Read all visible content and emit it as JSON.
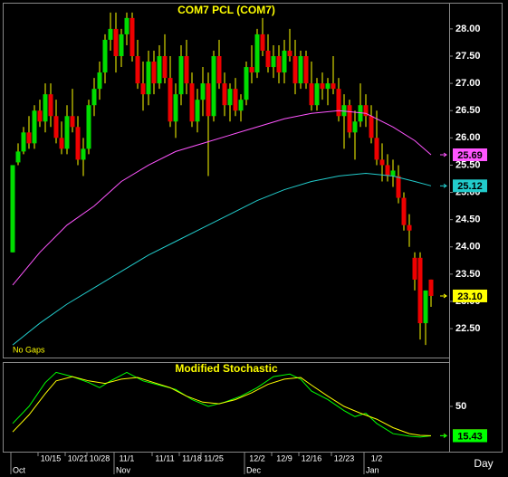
{
  "chart_data": [
    {
      "type": "candlestick",
      "title": "COM7  PCL  (COM7)",
      "note": "No Gaps",
      "categories": [
        "Oct",
        null,
        null,
        null,
        null,
        null,
        null,
        "10/15",
        null,
        null,
        null,
        null,
        "10/21",
        null,
        null,
        null,
        "10/28",
        null,
        null,
        null,
        null,
        "11/1",
        null,
        null,
        null,
        null,
        null,
        null,
        "11/11",
        null,
        null,
        null,
        null,
        "11/18",
        null,
        null,
        null,
        "11/25",
        null,
        null,
        null,
        null,
        null,
        null,
        null,
        "12/2",
        null,
        null,
        null,
        null,
        "12/9",
        null,
        null,
        null,
        null,
        "12/16",
        null,
        null,
        null,
        null,
        null,
        "12/23",
        null,
        null,
        null,
        null,
        null,
        "1/2",
        null,
        null,
        null,
        null,
        null,
        null,
        null,
        null,
        null,
        null
      ],
      "month_ticks": [
        {
          "value": 0,
          "label": "Oct"
        },
        {
          "value": 19,
          "label": "Nov"
        },
        {
          "value": 43,
          "label": "Dec"
        },
        {
          "value": 65,
          "label": "Jan"
        }
      ],
      "open": [
        23.9,
        25.55,
        25.75,
        26.1,
        25.9,
        26.5,
        26.3,
        26.8,
        26.4,
        26.0,
        25.8,
        26.4,
        26.2,
        25.6,
        25.8,
        26.6,
        26.9,
        27.2,
        27.8,
        28.0,
        27.5,
        27.9,
        28.2,
        27.5,
        27.0,
        26.8,
        27.4,
        27.0,
        27.5,
        27.1,
        26.3,
        26.8,
        27.5,
        27.0,
        26.3,
        26.7,
        27.0,
        26.4,
        27.5,
        27.0,
        26.6,
        26.9,
        26.5,
        26.7,
        27.3,
        27.2,
        27.9,
        27.6,
        27.3,
        27.5,
        27.2,
        27.6,
        27.5,
        27.0,
        27.5,
        27.0,
        26.6,
        27.0,
        26.9,
        27.0,
        26.9,
        26.4,
        26.6,
        26.1,
        26.3,
        26.6,
        26.4,
        26.0,
        25.6,
        25.5,
        25.3,
        25.3,
        24.9,
        24.4,
        23.8,
        23.8,
        22.6,
        23.4
      ],
      "high": [
        25.5,
        25.9,
        26.2,
        26.4,
        26.6,
        26.7,
        27.0,
        27.0,
        26.7,
        26.3,
        26.6,
        26.9,
        26.4,
        26.0,
        26.7,
        27.1,
        27.4,
        27.9,
        28.3,
        28.3,
        28.0,
        28.3,
        28.3,
        27.8,
        27.4,
        27.6,
        27.6,
        27.7,
        27.9,
        27.5,
        27.0,
        27.7,
        27.8,
        27.2,
        26.9,
        27.3,
        27.2,
        27.6,
        27.8,
        27.2,
        27.0,
        27.1,
        26.8,
        27.4,
        27.7,
        28.0,
        28.2,
        27.9,
        27.7,
        27.7,
        27.8,
        28.0,
        27.8,
        27.6,
        27.6,
        27.4,
        27.1,
        27.2,
        27.1,
        27.5,
        27.1,
        26.8,
        26.7,
        26.5,
        27.0,
        26.8,
        26.6,
        26.5,
        25.9,
        25.7,
        25.6,
        25.5,
        25.0,
        24.6,
        23.9,
        23.9,
        23.2,
        23.4
      ],
      "low": [
        23.9,
        25.5,
        25.7,
        25.8,
        25.8,
        26.2,
        26.1,
        26.2,
        25.9,
        25.7,
        25.7,
        26.1,
        25.5,
        25.3,
        25.7,
        26.4,
        26.7,
        27.0,
        27.6,
        27.2,
        27.3,
        27.7,
        27.4,
        26.9,
        26.5,
        26.6,
        26.8,
        26.9,
        27.0,
        26.2,
        26.0,
        26.6,
        26.8,
        26.2,
        26.1,
        26.4,
        25.3,
        26.3,
        26.9,
        26.4,
        26.3,
        26.4,
        26.3,
        26.6,
        27.0,
        27.1,
        27.5,
        27.2,
        27.1,
        27.0,
        27.0,
        27.4,
        26.8,
        26.9,
        26.9,
        26.5,
        26.5,
        26.7,
        26.6,
        26.8,
        26.3,
        25.8,
        26.0,
        25.6,
        26.2,
        26.2,
        25.9,
        25.5,
        25.2,
        25.2,
        25.1,
        24.8,
        24.3,
        24.0,
        23.2,
        22.3,
        22.2,
        22.9
      ],
      "close": [
        25.5,
        25.75,
        26.1,
        25.9,
        26.5,
        26.3,
        26.8,
        26.4,
        26.0,
        25.8,
        26.4,
        26.2,
        25.6,
        25.8,
        26.6,
        26.9,
        27.2,
        27.8,
        28.0,
        27.5,
        27.9,
        28.2,
        27.5,
        27.0,
        26.8,
        27.4,
        27.0,
        27.5,
        27.1,
        26.3,
        26.8,
        27.5,
        27.0,
        26.3,
        26.7,
        27.0,
        26.4,
        27.5,
        27.0,
        26.6,
        26.9,
        26.5,
        26.7,
        27.3,
        27.2,
        27.9,
        27.6,
        27.3,
        27.5,
        27.2,
        27.6,
        27.5,
        27.0,
        27.5,
        27.0,
        26.6,
        27.0,
        26.9,
        27.0,
        26.9,
        26.4,
        26.6,
        26.1,
        26.3,
        26.6,
        26.4,
        26.0,
        25.6,
        25.5,
        25.3,
        25.4,
        24.9,
        24.4,
        24.3,
        23.4,
        22.6,
        23.2,
        23.1
      ],
      "up_color": "#00dd00",
      "down_color": "#ee0000",
      "wick_color": "#ffff00",
      "lines": [
        {
          "color": "#ff55ff",
          "x": [
            0,
            5,
            10,
            15,
            20,
            25,
            30,
            35,
            40,
            45,
            50,
            55,
            60,
            65,
            70,
            74,
            77
          ],
          "values": [
            23.3,
            23.9,
            24.4,
            24.75,
            25.2,
            25.5,
            25.75,
            25.9,
            26.05,
            26.2,
            26.35,
            26.45,
            26.5,
            26.45,
            26.2,
            25.95,
            25.69
          ]
        },
        {
          "color": "#22cccc",
          "x": [
            0,
            5,
            10,
            15,
            20,
            25,
            30,
            35,
            40,
            45,
            50,
            55,
            60,
            65,
            70,
            74,
            77
          ],
          "values": [
            22.2,
            22.6,
            22.95,
            23.25,
            23.55,
            23.85,
            24.1,
            24.35,
            24.6,
            24.85,
            25.05,
            25.2,
            25.3,
            25.35,
            25.3,
            25.2,
            25.12
          ]
        }
      ],
      "price_markers": [
        {
          "value": 25.69,
          "color": "#ff55ff"
        },
        {
          "value": 25.12,
          "color": "#22cccc"
        },
        {
          "value": 23.1,
          "label": "23.10",
          "color": "#ffff00"
        }
      ],
      "ylim": [
        21.97,
        28.48
      ],
      "yticks": [
        {
          "value": 22.5,
          "label": "22.50"
        },
        {
          "value": 23,
          "label": "23.00"
        },
        {
          "value": 23.5,
          "label": "23.50"
        },
        {
          "value": 24,
          "label": "24.00"
        },
        {
          "value": 24.5,
          "label": "24.50"
        },
        {
          "value": 25,
          "label": "25.00"
        },
        {
          "value": 25.5,
          "label": "25.50"
        },
        {
          "value": 26,
          "label": "26.00"
        },
        {
          "value": 26.5,
          "label": "26.50"
        },
        {
          "value": 27,
          "label": "27.00"
        },
        {
          "value": 27.5,
          "label": "27.50"
        },
        {
          "value": 28,
          "label": "28.00"
        }
      ]
    },
    {
      "type": "line",
      "title": "Modified Stochastic",
      "xlabel": "Day",
      "series": [
        {
          "color": "#00ff00",
          "x": [
            0,
            3,
            6,
            8,
            11,
            14,
            16,
            18,
            21,
            24,
            27,
            30,
            33,
            36,
            39,
            42,
            45,
            48,
            51,
            53,
            55,
            58,
            61,
            63,
            65,
            67,
            70,
            73,
            75,
            77
          ],
          "values": [
            30,
            50,
            78,
            90,
            85,
            78,
            72,
            80,
            90,
            80,
            75,
            70,
            58,
            50,
            55,
            62,
            72,
            85,
            88,
            82,
            68,
            58,
            45,
            38,
            42,
            30,
            18,
            15,
            14,
            15.43
          ]
        },
        {
          "color": "#ffff00",
          "x": [
            0,
            3,
            6,
            8,
            11,
            14,
            17,
            20,
            23,
            26,
            29,
            32,
            35,
            38,
            41,
            44,
            47,
            50,
            53,
            55,
            58,
            61,
            64,
            67,
            70,
            73,
            75,
            77
          ],
          "values": [
            20,
            40,
            65,
            80,
            85,
            80,
            77,
            82,
            84,
            78,
            72,
            62,
            55,
            53,
            58,
            66,
            76,
            82,
            84,
            75,
            62,
            50,
            42,
            35,
            25,
            18,
            16,
            15.62
          ]
        }
      ],
      "price_markers": [
        {
          "value": 15.62,
          "color": "#ffff00"
        },
        {
          "value": 15.43,
          "color": "#00ff00"
        }
      ],
      "ylim": [
        0,
        100
      ],
      "yticks": [
        50
      ]
    }
  ]
}
